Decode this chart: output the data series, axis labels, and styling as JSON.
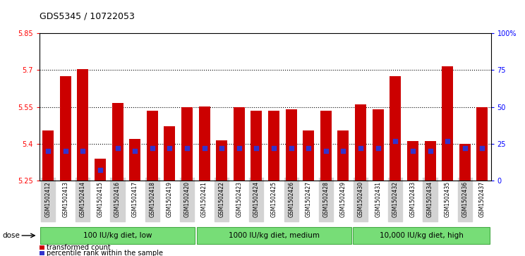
{
  "title": "GDS5345 / 10722053",
  "samples": [
    "GSM1502412",
    "GSM1502413",
    "GSM1502414",
    "GSM1502415",
    "GSM1502416",
    "GSM1502417",
    "GSM1502418",
    "GSM1502419",
    "GSM1502420",
    "GSM1502421",
    "GSM1502422",
    "GSM1502423",
    "GSM1502424",
    "GSM1502425",
    "GSM1502426",
    "GSM1502427",
    "GSM1502428",
    "GSM1502429",
    "GSM1502430",
    "GSM1502431",
    "GSM1502432",
    "GSM1502433",
    "GSM1502434",
    "GSM1502435",
    "GSM1502436",
    "GSM1502437"
  ],
  "bar_values": [
    5.455,
    5.675,
    5.705,
    5.34,
    5.565,
    5.42,
    5.535,
    5.47,
    5.548,
    5.553,
    5.415,
    5.55,
    5.535,
    5.535,
    5.54,
    5.455,
    5.535,
    5.455,
    5.56,
    5.54,
    5.675,
    5.41,
    5.41,
    5.715,
    5.4,
    5.55
  ],
  "percentile_values": [
    20.0,
    20.0,
    20.0,
    7.0,
    22.0,
    20.0,
    22.0,
    22.0,
    22.0,
    22.0,
    22.0,
    22.0,
    22.0,
    22.0,
    22.0,
    22.0,
    20.0,
    20.0,
    22.0,
    22.0,
    27.0,
    20.0,
    20.0,
    27.0,
    22.0,
    22.0
  ],
  "baseline": 5.25,
  "ymin": 5.25,
  "ymax": 5.85,
  "yticks": [
    5.25,
    5.4,
    5.55,
    5.7,
    5.85
  ],
  "right_yticks": [
    0,
    25,
    50,
    75,
    100
  ],
  "right_yticklabels": [
    "0",
    "25",
    "50",
    "75",
    "100%"
  ],
  "groups": [
    {
      "label": "100 IU/kg diet, low",
      "start": 0,
      "end": 9
    },
    {
      "label": "1000 IU/kg diet, medium",
      "start": 9,
      "end": 18
    },
    {
      "label": "10,000 IU/kg diet, high",
      "start": 18,
      "end": 26
    }
  ],
  "bar_color": "#CC0000",
  "blue_color": "#3333CC",
  "green_color": "#77DD77",
  "green_border": "#44AA44",
  "bg_color": "#D3D3D3",
  "plot_bg": "#FFFFFF",
  "bar_width": 0.65
}
